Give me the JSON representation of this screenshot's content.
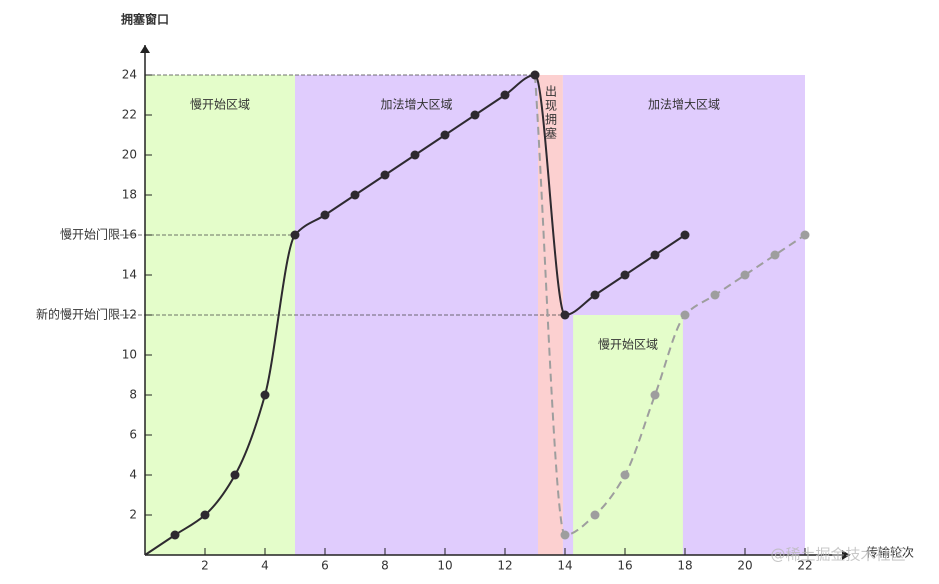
{
  "chart_data": {
    "type": "line",
    "y_label": "拥塞窗口",
    "x_label": "传输轮次",
    "watermark": "@稀土掘金技术社区",
    "xlim": [
      0,
      23.5
    ],
    "ylim": [
      0,
      25.5
    ],
    "xticks": [
      2,
      4,
      6,
      8,
      10,
      12,
      14,
      16,
      18,
      20,
      22
    ],
    "yticks": [
      2,
      4,
      6,
      8,
      10,
      12,
      14,
      16,
      18,
      20,
      22,
      24
    ],
    "regions": [
      {
        "label": "慢开始区域",
        "x": [
          0,
          5
        ],
        "y": [
          0,
          24
        ],
        "color": "#e4fdca"
      },
      {
        "label": "加法增大区域",
        "x": [
          5,
          13.1
        ],
        "y": [
          0,
          24
        ],
        "color": "#e0ccfd"
      },
      {
        "label": "出现拥塞",
        "x": [
          13.1,
          13.93
        ],
        "y": [
          0,
          24
        ],
        "color": "#fcd0d0",
        "vertical": true
      },
      {
        "label": "加法增大区域",
        "x": [
          13.93,
          22
        ],
        "y": [
          0,
          24
        ],
        "color": "#e0ccfd"
      },
      {
        "label": "慢开始区域",
        "x": [
          14.27,
          17.93
        ],
        "y": [
          0,
          12
        ],
        "color": "#e4fdca"
      }
    ],
    "hlines": [
      {
        "y": 24,
        "x_end": 13
      },
      {
        "y": 16,
        "x_end": 5,
        "label": "慢开始门限"
      },
      {
        "y": 12,
        "x_end": 14,
        "label": "新的慢开始门限"
      }
    ],
    "series": [
      {
        "x": [
          13,
          14,
          15,
          16,
          17,
          18,
          19,
          20,
          21,
          22
        ],
        "values": [
          24,
          1,
          2,
          4,
          8,
          12,
          13,
          14,
          15,
          16
        ],
        "color": "#9e9e9e",
        "dashed": true
      },
      {
        "x": [
          0,
          1,
          2,
          3,
          4,
          5,
          6,
          7,
          8,
          9,
          10,
          11,
          12,
          13,
          14,
          15,
          16,
          17,
          18
        ],
        "values": [
          0,
          1,
          2,
          4,
          8,
          16,
          17,
          18,
          19,
          20,
          21,
          22,
          23,
          24,
          12,
          13,
          14,
          15,
          16
        ],
        "color": "#2e2a30",
        "dashed": false
      }
    ]
  }
}
